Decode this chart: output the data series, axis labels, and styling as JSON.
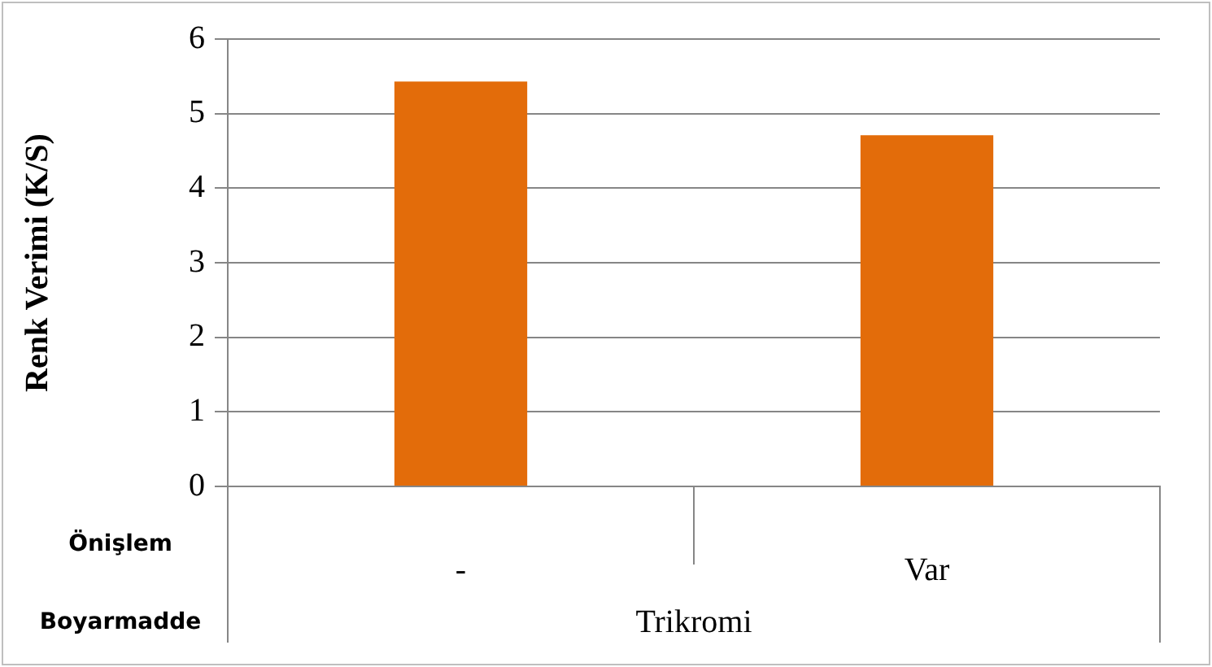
{
  "chart_data": {
    "type": "bar",
    "ylabel": "Renk Verimi (K/S)",
    "categories": [
      "-",
      "Var"
    ],
    "values": [
      5.43,
      4.71
    ],
    "color": "#e36c0a",
    "ylim": [
      0,
      6
    ],
    "yticks": [
      0,
      1,
      2,
      3,
      4,
      5,
      6
    ],
    "grid": "y",
    "legend": false,
    "annotations": [
      "Önişlem",
      "Boyarmadde",
      "Trikromi"
    ]
  }
}
